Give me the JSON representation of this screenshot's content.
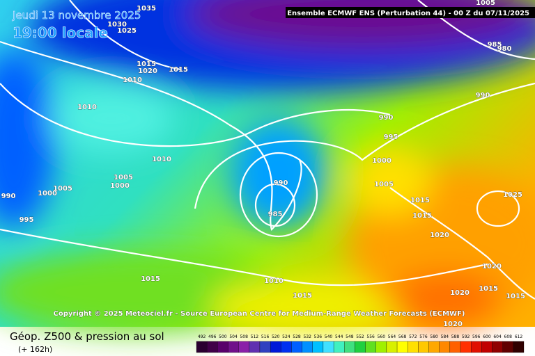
{
  "header": {
    "date": "Jeudi 13 novembre 2025",
    "time": "19:00 locale",
    "model": "Ensemble ECMWF ENS  (Perturbation 44)  - 00 Z du 07/11/2025"
  },
  "copyright": "Copyright © 2025 Meteociel.fr - Source European Centre for Medium-Range Weather Forecasts (ECMWF)",
  "footer": {
    "title": "Géop. Z500 & pression au sol",
    "lead": "(+ 162h)"
  },
  "isobar_labels": [
    "1035",
    "1030",
    "1025",
    "1015",
    "1020",
    "1015",
    "1010",
    "1010",
    "1010",
    "1005",
    "1000",
    "1005",
    "1000",
    "990",
    "995",
    "990",
    "985",
    "1005",
    "990",
    "990",
    "995",
    "1000",
    "1005",
    "985",
    "980",
    "1015",
    "1015",
    "1020",
    "1025",
    "1020",
    "1015",
    "1010",
    "1015",
    "1020",
    "1015",
    "1015",
    "1020"
  ],
  "colorbar": {
    "labels": [
      "492",
      "496",
      "500",
      "504",
      "508",
      "512",
      "516",
      "520",
      "524",
      "528",
      "532",
      "536",
      "540",
      "544",
      "548",
      "552",
      "556",
      "560",
      "564",
      "568",
      "572",
      "576",
      "580",
      "584",
      "588",
      "592",
      "596",
      "600",
      "604",
      "608",
      "612"
    ],
    "colors": [
      "#2a0030",
      "#400048",
      "#58006a",
      "#70108a",
      "#8a20a8",
      "#6030b0",
      "#3040c0",
      "#0018d8",
      "#0030f0",
      "#0060ff",
      "#0090ff",
      "#00c0ff",
      "#40e0ff",
      "#40f0c0",
      "#40e080",
      "#20d040",
      "#60e020",
      "#a0f000",
      "#d8f000",
      "#ffff00",
      "#ffe000",
      "#ffc800",
      "#ffa800",
      "#ff8800",
      "#ff6000",
      "#ff3000",
      "#e01000",
      "#c00000",
      "#900000",
      "#600000",
      "#300000"
    ]
  }
}
